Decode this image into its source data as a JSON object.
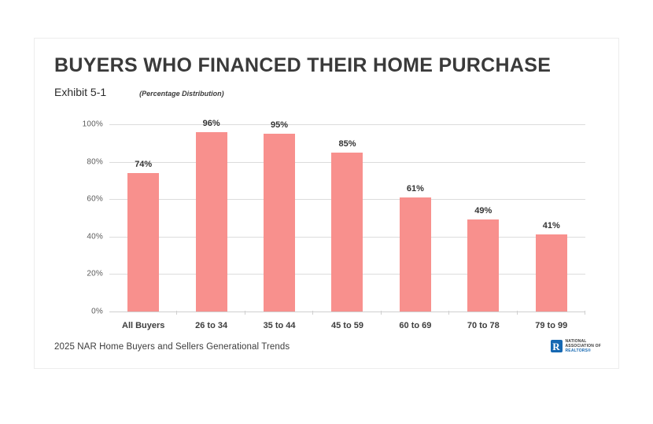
{
  "header": {
    "title": "BUYERS WHO FINANCED THEIR HOME PURCHASE",
    "exhibit": "Exhibit 5-1",
    "subtitle": "(Percentage Distribution)"
  },
  "chart_data": {
    "type": "bar",
    "title": "BUYERS WHO FINANCED THEIR HOME PURCHASE",
    "subtitle": "(Percentage Distribution)",
    "categories": [
      "All Buyers",
      "26 to 34",
      "35 to 44",
      "45 to 59",
      "60 to 69",
      "70 to 78",
      "79 to 99"
    ],
    "values": [
      74,
      96,
      95,
      85,
      61,
      49,
      41
    ],
    "value_labels": [
      "74%",
      "96%",
      "95%",
      "85%",
      "61%",
      "49%",
      "41%"
    ],
    "xlabel": "",
    "ylabel": "",
    "ylim": [
      0,
      100
    ],
    "yticks": [
      0,
      20,
      40,
      60,
      80,
      100
    ],
    "ytick_labels": [
      "0%",
      "20%",
      "40%",
      "60%",
      "80%",
      "100%"
    ],
    "grid": true,
    "legend": false,
    "bar_color": "#F8908D"
  },
  "footer": {
    "source": "2025 NAR Home Buyers and Sellers Generational Trends",
    "logo": {
      "letter": "R",
      "line1": "NATIONAL",
      "line2": "ASSOCIATION OF",
      "line3": "REALTORS®",
      "blue": "#1668B2"
    }
  }
}
